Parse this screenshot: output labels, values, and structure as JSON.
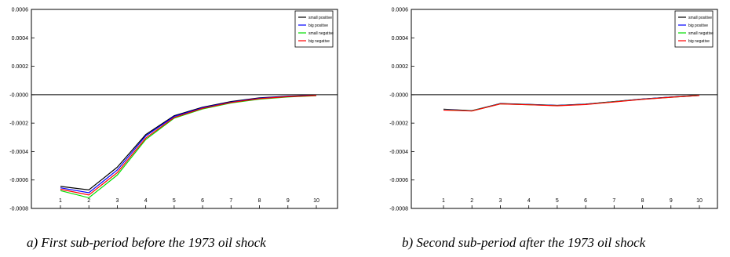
{
  "chart_data": [
    {
      "type": "line",
      "x": [
        1,
        2,
        3,
        4,
        5,
        6,
        7,
        8,
        9,
        10
      ],
      "ylim": [
        -0.0008,
        0.0006
      ],
      "yticks": [
        "0.0006",
        "0.0004",
        "0.0002",
        "-0.0000",
        "-0.0002",
        "-0.0004",
        "-0.0006",
        "-0.0008"
      ],
      "xticks": [
        "1",
        "2",
        "3",
        "4",
        "5",
        "6",
        "7",
        "8",
        "9",
        "10"
      ],
      "legend_position": "top-right",
      "series": [
        {
          "name": "small positive",
          "color": "#000000",
          "values": [
            -0.000645,
            -0.00067,
            -0.00051,
            -0.00028,
            -0.000148,
            -8.8e-05,
            -4.8e-05,
            -2.2e-05,
            -1e-05,
            -4e-06
          ]
        },
        {
          "name": "big positive",
          "color": "#0000ff",
          "values": [
            -0.000655,
            -0.00069,
            -0.00053,
            -0.00029,
            -0.000153,
            -9.2e-05,
            -5.2e-05,
            -2.5e-05,
            -1.2e-05,
            -5e-06
          ]
        },
        {
          "name": "small negative",
          "color": "#00dd00",
          "values": [
            -0.000675,
            -0.000725,
            -0.000565,
            -0.000315,
            -0.000165,
            -0.0001,
            -5.8e-05,
            -3.1e-05,
            -1.6e-05,
            -7e-06
          ]
        },
        {
          "name": "big negative",
          "color": "#ff0000",
          "values": [
            -0.000665,
            -0.000705,
            -0.000548,
            -0.000305,
            -0.00016,
            -9.6e-05,
            -5.5e-05,
            -2.8e-05,
            -1.4e-05,
            -6e-06
          ]
        }
      ]
    },
    {
      "type": "line",
      "x": [
        1,
        2,
        3,
        4,
        5,
        6,
        7,
        8,
        9,
        10
      ],
      "ylim": [
        -0.0008,
        0.0006
      ],
      "yticks": [
        "0.0006",
        "0.0004",
        "0.0002",
        "-0.0000",
        "-0.0002",
        "-0.0004",
        "-0.0006",
        "-0.0008"
      ],
      "xticks": [
        "1",
        "2",
        "3",
        "4",
        "5",
        "6",
        "7",
        "8",
        "9",
        "10"
      ],
      "legend_position": "top-right",
      "series": [
        {
          "name": "small positive",
          "color": "#000000",
          "values": [
            -0.000102,
            -0.000112,
            -6.2e-05,
            -6.8e-05,
            -7.5e-05,
            -6.6e-05,
            -4.8e-05,
            -3e-05,
            -1.6e-05,
            -4e-06
          ]
        },
        {
          "name": "big positive",
          "color": "#0000ff",
          "values": [
            -0.000104,
            -0.000113,
            -6.3e-05,
            -6.9e-05,
            -7.6e-05,
            -6.7e-05,
            -4.9e-05,
            -3.1e-05,
            -1.7e-05,
            -5e-06
          ]
        },
        {
          "name": "small negative",
          "color": "#00dd00",
          "values": [
            -0.000106,
            -0.000114,
            -6.4e-05,
            -7e-05,
            -7.7e-05,
            -6.8e-05,
            -5e-05,
            -3.2e-05,
            -1.8e-05,
            -5e-06
          ]
        },
        {
          "name": "big negative",
          "color": "#ff0000",
          "values": [
            -0.000108,
            -0.000115,
            -6.5e-05,
            -7.1e-05,
            -7.8e-05,
            -6.9e-05,
            -5.1e-05,
            -3.3e-05,
            -1.8e-05,
            -6e-06
          ]
        }
      ]
    }
  ],
  "captions": {
    "a": "a) First sub-period before the 1973 oil shock",
    "b": "b) Second sub-period after the 1973 oil shock"
  }
}
